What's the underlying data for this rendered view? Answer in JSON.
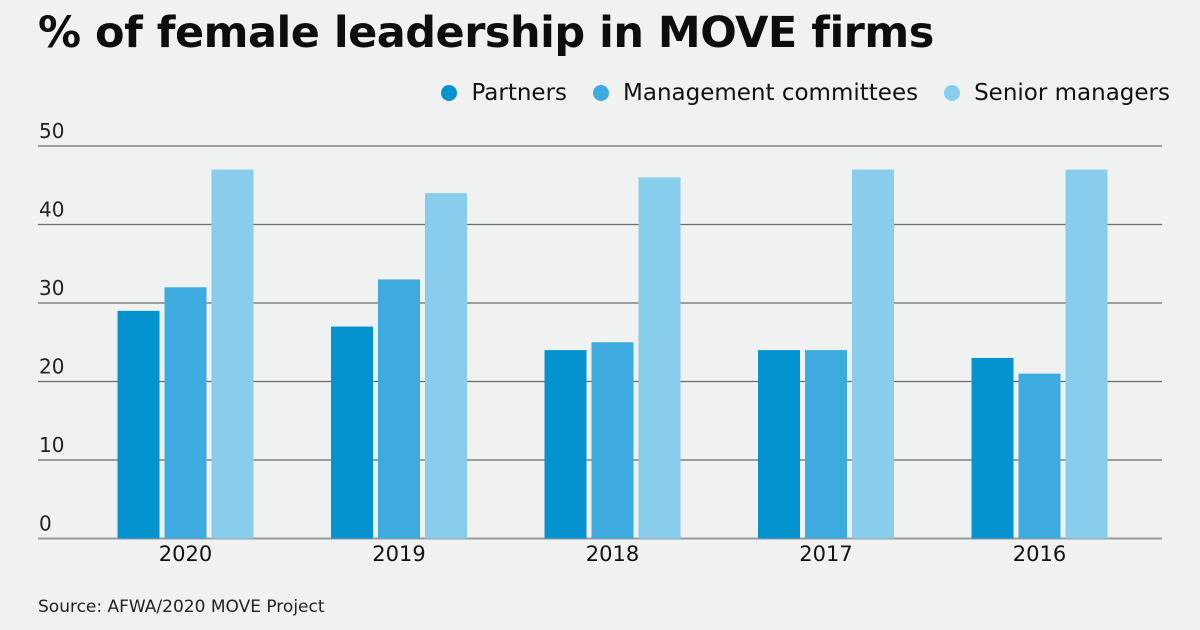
{
  "header": {
    "title": "% of female leadership in MOVE firms"
  },
  "footer": {
    "source": "Source: AFWA/2020 MOVE Project"
  },
  "chart_data": {
    "type": "bar",
    "title": "% of female leadership in MOVE firms",
    "xlabel": "",
    "ylabel": "",
    "categories": [
      "2020",
      "2019",
      "2018",
      "2017",
      "2016"
    ],
    "series": [
      {
        "name": "Partners",
        "color": "#0593d0",
        "values": [
          29,
          27,
          24,
          24,
          23
        ]
      },
      {
        "name": "Management committees",
        "color": "#3dabdf",
        "values": [
          32,
          33,
          25,
          24,
          21
        ]
      },
      {
        "name": "Senior managers",
        "color": "#89cdec",
        "values": [
          47,
          44,
          46,
          47,
          47
        ]
      }
    ],
    "ylim": [
      0,
      50
    ],
    "yticks": [
      "0",
      "10",
      "20",
      "30",
      "40",
      "50"
    ],
    "grid": true,
    "legend_position": "top-right",
    "source": "Source: AFWA/2020 MOVE Project"
  }
}
